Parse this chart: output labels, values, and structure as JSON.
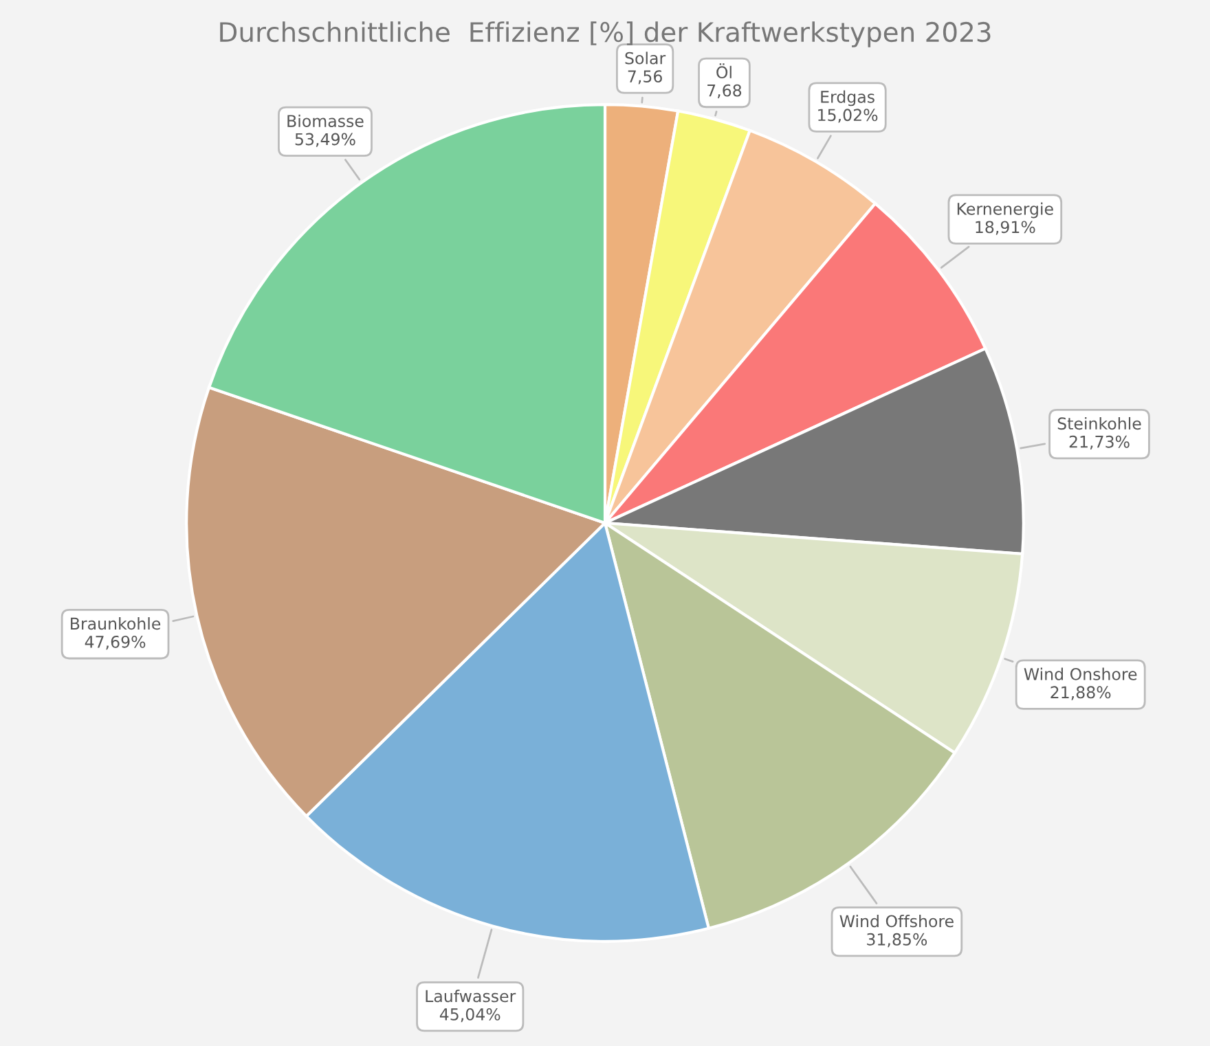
{
  "chart_data": {
    "type": "pie",
    "title": "Durchschnittliche  Effizienz [%] der Kraftwerkstypen 2023",
    "categories": [
      "Solar",
      "Öl",
      "Erdgas",
      "Kernenergie",
      "Steinkohle",
      "Wind Onshore",
      "Wind Offshore",
      "Laufwasser",
      "Braunkohle",
      "Biomasse"
    ],
    "values": [
      7.56,
      7.68,
      15.02,
      18.91,
      21.73,
      21.88,
      31.85,
      45.04,
      47.69,
      53.49
    ],
    "value_labels": [
      "7,56",
      "7,68",
      "15,02%",
      "18,91%",
      "21,73%",
      "21,88%",
      "31,85%",
      "45,04%",
      "47,69%",
      "53,49%"
    ],
    "colors": [
      "#edb07b",
      "#f7f77a",
      "#f7c49a",
      "#fa7878",
      "#787878",
      "#dde4c7",
      "#b9c598",
      "#7ab0d8",
      "#c89e7e",
      "#7ad19c"
    ],
    "legend": false
  }
}
